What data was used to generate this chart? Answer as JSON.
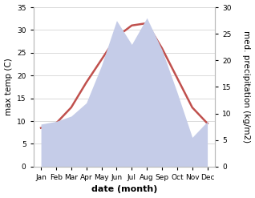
{
  "months": [
    "Jan",
    "Feb",
    "Mar",
    "Apr",
    "May",
    "Jun",
    "Jul",
    "Aug",
    "Sep",
    "Oct",
    "Nov",
    "Dec"
  ],
  "month_positions": [
    1,
    2,
    3,
    4,
    5,
    6,
    7,
    8,
    9,
    10,
    11,
    12
  ],
  "temp": [
    8.5,
    9.5,
    13.0,
    18.5,
    23.5,
    28.5,
    31.0,
    31.5,
    26.0,
    19.5,
    13.0,
    9.5
  ],
  "precip": [
    8.0,
    8.5,
    9.5,
    12.0,
    19.0,
    27.5,
    23.0,
    28.0,
    22.0,
    14.0,
    5.5,
    8.5
  ],
  "temp_color": "#c0504d",
  "precip_fill_color": "#c5cce8",
  "temp_ylim": [
    0,
    35
  ],
  "precip_ylim": [
    0,
    30
  ],
  "temp_yticks": [
    0,
    5,
    10,
    15,
    20,
    25,
    30,
    35
  ],
  "precip_yticks": [
    0,
    5,
    10,
    15,
    20,
    25,
    30
  ],
  "xlabel": "date (month)",
  "ylabel_left": "max temp (C)",
  "ylabel_right": "med. precipitation (kg/m2)",
  "bg_color": "#ffffff",
  "grid_color": "#cccccc",
  "temp_linewidth": 1.8,
  "xlabel_fontsize": 8,
  "ylabel_fontsize": 7.5,
  "tick_fontsize": 6.5
}
